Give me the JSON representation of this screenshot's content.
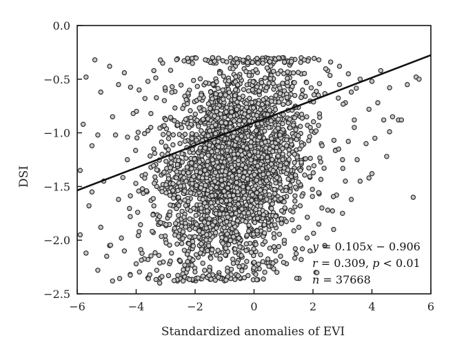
{
  "chart_data": {
    "type": "scatter",
    "title": "",
    "xlabel": "Standardized anomalies of EVI",
    "ylabel": "DSI",
    "xlim": [
      -6,
      6
    ],
    "ylim": [
      -2.5,
      0.0
    ],
    "x_ticks": [
      -6,
      -4,
      -2,
      0,
      2,
      4,
      6
    ],
    "x_tick_labels": [
      "−6",
      "−4",
      "−2",
      "0",
      "2",
      "4",
      "6"
    ],
    "y_ticks": [
      0.0,
      -0.5,
      -1.0,
      -1.5,
      -2.0,
      -2.5
    ],
    "y_tick_labels": [
      "0.0",
      "−0.5",
      "−1.0",
      "−1.5",
      "−2.0",
      "−2.5"
    ],
    "grid": false,
    "marker_fill": "#c8c8c8",
    "marker_edge": "#2a2a2a",
    "line_color": "#111111",
    "regression": {
      "slope": 0.105,
      "intercept": -0.906,
      "x_range": [
        -6,
        6
      ]
    },
    "points": [
      [
        -5.4,
        -0.32
      ],
      [
        -4.9,
        -0.38
      ],
      [
        -5.7,
        -0.48
      ],
      [
        -5.2,
        -0.62
      ],
      [
        -4.6,
        -0.55
      ],
      [
        -5.8,
        -0.92
      ],
      [
        -5.5,
        -1.12
      ],
      [
        -5.9,
        -1.35
      ],
      [
        -5.3,
        -1.02
      ],
      [
        -4.8,
        -0.85
      ],
      [
        -5.1,
        -1.45
      ],
      [
        -5.6,
        -1.68
      ],
      [
        -5.9,
        -1.95
      ],
      [
        -5.2,
        -1.88
      ],
      [
        -4.9,
        -2.05
      ],
      [
        -5.7,
        -2.12
      ],
      [
        -5.3,
        -2.28
      ],
      [
        -4.8,
        -2.38
      ],
      [
        -5.0,
        -2.15
      ],
      [
        -5.5,
        -1.55
      ],
      [
        -4.2,
        -2.32
      ],
      [
        -4.5,
        -1.98
      ],
      [
        -4.0,
        -2.22
      ],
      [
        -3.6,
        -2.35
      ],
      [
        -3.2,
        -2.4
      ],
      [
        -2.6,
        -2.38
      ],
      [
        -1.8,
        -2.36
      ],
      [
        -1.2,
        -2.34
      ],
      [
        -0.6,
        -2.32
      ],
      [
        0.0,
        -2.3
      ],
      [
        0.6,
        -2.25
      ],
      [
        1.1,
        -2.22
      ],
      [
        1.6,
        -2.18
      ],
      [
        2.1,
        -2.3
      ],
      [
        1.9,
        -2.1
      ],
      [
        2.4,
        -2.05
      ],
      [
        2.7,
        -1.9
      ],
      [
        3.0,
        -1.75
      ],
      [
        3.3,
        -1.62
      ],
      [
        3.6,
        -1.45
      ],
      [
        3.9,
        -1.42
      ],
      [
        4.0,
        -1.38
      ],
      [
        3.5,
        -1.25
      ],
      [
        3.8,
        -1.1
      ],
      [
        4.1,
        -1.05
      ],
      [
        4.4,
        -0.88
      ],
      [
        4.2,
        -0.72
      ],
      [
        4.7,
        -0.85
      ],
      [
        4.9,
        -0.88
      ],
      [
        5.0,
        -0.88
      ],
      [
        5.2,
        -0.55
      ],
      [
        5.5,
        -0.48
      ],
      [
        5.6,
        -0.5
      ],
      [
        4.6,
        -0.58
      ],
      [
        4.3,
        -0.42
      ],
      [
        4.0,
        -0.52
      ],
      [
        3.6,
        -0.5
      ],
      [
        3.2,
        -0.45
      ],
      [
        2.9,
        -0.38
      ],
      [
        2.6,
        -0.34
      ],
      [
        5.4,
        -1.6
      ],
      [
        4.6,
        -0.99
      ],
      [
        3.9,
        -0.78
      ],
      [
        3.4,
        -0.88
      ],
      [
        4.5,
        -1.22
      ],
      [
        -4.4,
        -0.44
      ],
      [
        -3.9,
        -0.6
      ],
      [
        -4.1,
        -0.82
      ],
      [
        -4.7,
        -1.02
      ],
      [
        -4.3,
        -1.25
      ],
      [
        -3.8,
        -1.4
      ],
      [
        -4.6,
        -1.62
      ],
      [
        -4.2,
        -1.78
      ],
      [
        -3.9,
        -1.92
      ],
      [
        -4.4,
        -2.1
      ],
      [
        -3.6,
        -2.18
      ],
      [
        -3.3,
        -2.28
      ],
      [
        -2.9,
        -2.33
      ],
      [
        -2.3,
        -2.3
      ],
      [
        -1.5,
        -2.28
      ],
      [
        -0.9,
        -2.26
      ],
      [
        -0.3,
        -2.25
      ],
      [
        0.3,
        -2.2
      ],
      [
        0.9,
        -2.15
      ],
      [
        1.4,
        -2.08
      ],
      [
        1.8,
        -1.98
      ],
      [
        2.2,
        -1.85
      ],
      [
        2.5,
        -1.72
      ],
      [
        2.8,
        -1.58
      ],
      [
        3.1,
        -1.45
      ],
      [
        3.0,
        -1.25
      ],
      [
        3.2,
        -1.08
      ],
      [
        3.4,
        -0.95
      ],
      [
        3.1,
        -0.72
      ],
      [
        3.3,
        -0.62
      ],
      [
        2.9,
        -0.55
      ],
      [
        2.5,
        -0.42
      ],
      [
        2.2,
        -0.32
      ],
      [
        1.6,
        -0.3
      ],
      [
        1.0,
        -0.3
      ],
      [
        0.4,
        -0.3
      ],
      [
        -0.2,
        -0.3
      ],
      [
        -0.8,
        -0.3
      ],
      [
        -1.4,
        -0.3
      ],
      [
        -2.0,
        -0.3
      ],
      [
        -2.6,
        -0.31
      ],
      [
        -3.1,
        -0.35
      ],
      [
        -3.4,
        -0.42
      ],
      [
        -3.6,
        -0.52
      ],
      [
        -3.7,
        -0.68
      ],
      [
        -3.5,
        -0.82
      ],
      [
        -3.6,
        -0.98
      ],
      [
        -3.4,
        -1.15
      ],
      [
        -3.5,
        -1.32
      ],
      [
        -3.3,
        -1.5
      ],
      [
        -3.4,
        -1.68
      ],
      [
        -3.2,
        -1.85
      ],
      [
        -3.0,
        -2.0
      ],
      [
        -2.8,
        -2.12
      ],
      [
        -2.5,
        -2.2
      ]
    ]
  },
  "annotation": {
    "line1_lhs": "y",
    "line1_rhs": " = 0.105",
    "line1_x": "x",
    "line1_tail": " − 0.906",
    "line2_r": "r",
    "line2_mid": " = 0.309, ",
    "line2_p": "p",
    "line2_tail": " < 0.01",
    "line3_n": "n",
    "line3_tail": " = 37668"
  }
}
